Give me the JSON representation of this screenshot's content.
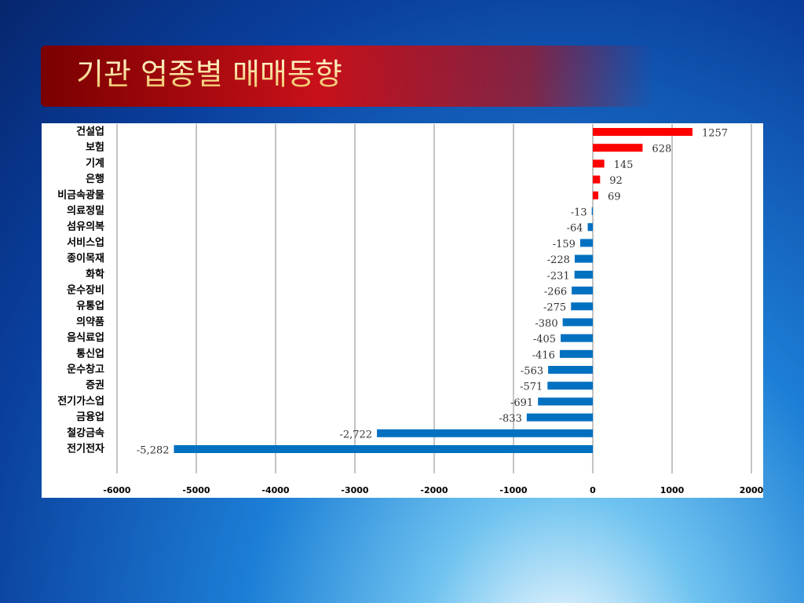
{
  "chart_data": {
    "type": "hbar",
    "title": "기관 업종별 매매동향",
    "categories": [
      "건설업",
      "보험",
      "기계",
      "은행",
      "비금속광물",
      "의료정밀",
      "섬유의복",
      "서비스업",
      "종이목재",
      "화학",
      "운수장비",
      "유통업",
      "의약품",
      "음식료업",
      "통신업",
      "운수창고",
      "증권",
      "전기가스업",
      "금융업",
      "철강금속",
      "전기전자"
    ],
    "values": [
      1257,
      628,
      145,
      92,
      69,
      -13,
      -64,
      -159,
      -228,
      -231,
      -266,
      -275,
      -380,
      -405,
      -416,
      -563,
      -571,
      -691,
      -833,
      -2722,
      -5282
    ],
    "value_labels": [
      "1257",
      "628",
      "145",
      "92",
      "69",
      "-13",
      "-64",
      "-159",
      "-228",
      "-231",
      "-266",
      "-275",
      "-380",
      "-405",
      "-416",
      "-563",
      "-571",
      "-691",
      "-833",
      "-2,722",
      "-5,282"
    ],
    "positive_color": "#ff0000",
    "negative_color": "#0070c0",
    "xlim": [
      -6000,
      2000
    ],
    "xticks": [
      -6000,
      -5000,
      -4000,
      -3000,
      -2000,
      -1000,
      0,
      1000,
      2000
    ],
    "grid": true
  }
}
